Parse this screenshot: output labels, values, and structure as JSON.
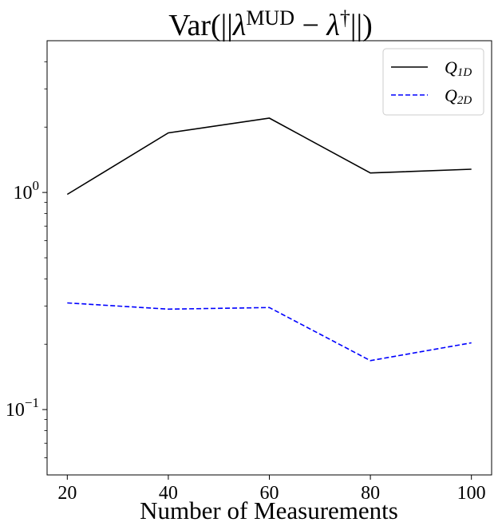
{
  "chart_data": {
    "type": "line",
    "title": {
      "prefix": "Var(||",
      "lambda1": "λ",
      "sup1": "MUD",
      "minus": " − ",
      "lambda2": "λ",
      "sup2": "†",
      "suffix": "||)"
    },
    "xlabel": "Number of Measurements",
    "ylabel": "",
    "x": [
      20,
      40,
      60,
      80,
      100
    ],
    "xlim": [
      16,
      104
    ],
    "ylim": [
      0.05,
      5.0
    ],
    "yscale": "log",
    "x_ticks": [
      {
        "value": 20,
        "label": "20"
      },
      {
        "value": 40,
        "label": "40"
      },
      {
        "value": 60,
        "label": "60"
      },
      {
        "value": 80,
        "label": "80"
      },
      {
        "value": 100,
        "label": "100"
      }
    ],
    "y_major_ticks": [
      {
        "value": 0.1,
        "base": "10",
        "exp": "−1"
      },
      {
        "value": 1,
        "base": "10",
        "exp": "0"
      }
    ],
    "y_minor_ticks": [
      0.06,
      0.07,
      0.08,
      0.09,
      0.2,
      0.3,
      0.4,
      0.5,
      0.6,
      0.7,
      0.8,
      0.9,
      2,
      3,
      4
    ],
    "grid": false,
    "legend_position": "top-right",
    "series": [
      {
        "name": "Q",
        "name_sub": "1D",
        "color": "#000000",
        "dash": "solid",
        "values": [
          0.98,
          1.88,
          2.2,
          1.23,
          1.28
        ]
      },
      {
        "name": "Q",
        "name_sub": "2D",
        "color": "#0000ff",
        "dash": "dashed",
        "values": [
          0.31,
          0.29,
          0.295,
          0.168,
          0.203
        ]
      }
    ]
  }
}
